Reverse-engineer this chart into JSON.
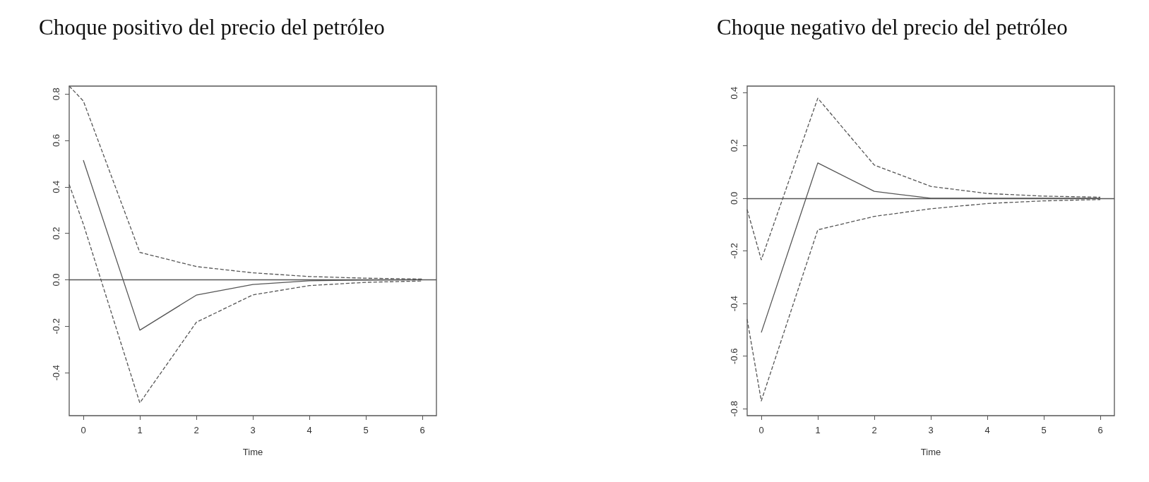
{
  "chart_data": [
    {
      "type": "line",
      "title": "Choque positivo del precio del petróleo",
      "xlabel": "Time",
      "xlim": [
        -0.25,
        6.25
      ],
      "xticks": [
        0,
        1,
        2,
        3,
        4,
        5,
        6
      ],
      "ylim": [
        -0.585,
        0.834
      ],
      "yticks": [
        {
          "value": -0.4,
          "label": "-0.4"
        },
        {
          "value": -0.2,
          "label": "-0.2"
        },
        {
          "value": 0,
          "label": "0.0"
        },
        {
          "value": 0.2,
          "label": "0.2"
        },
        {
          "value": 0.4,
          "label": "0.4"
        },
        {
          "value": 0.6,
          "label": "0.6"
        },
        {
          "value": 0.8,
          "label": "0.8"
        }
      ],
      "grid": false,
      "marker": "none",
      "ref_lines": [
        {
          "axis": "y",
          "value": 0,
          "color": "#555555",
          "line_style": "solid"
        }
      ],
      "series": [
        {
          "color": "#555555",
          "line_style": "solid",
          "x": [
            0,
            1,
            2,
            3,
            4,
            5,
            6
          ],
          "values": [
            0.515,
            -0.217,
            -0.066,
            -0.02,
            -0.004,
            -0.001,
            0
          ]
        },
        {
          "color": "#555555",
          "line_style": "dashed",
          "x": [
            -0.25,
            0,
            1,
            2,
            3,
            4,
            5,
            6
          ],
          "values": [
            0.834,
            0.77,
            0.118,
            0.057,
            0.03,
            0.014,
            0.007,
            0.003
          ]
        },
        {
          "color": "#555555",
          "line_style": "dashed",
          "x": [
            -0.25,
            0,
            1,
            2,
            3,
            4,
            5,
            6
          ],
          "values": [
            0.41,
            0.24,
            -0.53,
            -0.183,
            -0.065,
            -0.025,
            -0.011,
            -0.005
          ]
        }
      ]
    },
    {
      "type": "line",
      "title": "Choque negativo del precio del petróleo",
      "xlabel": "Time",
      "xlim": [
        -0.25,
        6.25
      ],
      "xticks": [
        0,
        1,
        2,
        3,
        4,
        5,
        6
      ],
      "ylim": [
        -0.826,
        0.426
      ],
      "yticks": [
        {
          "value": -0.8,
          "label": "-0.8"
        },
        {
          "value": -0.6,
          "label": "-0.6"
        },
        {
          "value": -0.4,
          "label": "-0.4"
        },
        {
          "value": -0.2,
          "label": "-0.2"
        },
        {
          "value": 0,
          "label": "0.0"
        },
        {
          "value": 0.2,
          "label": "0.2"
        },
        {
          "value": 0.4,
          "label": "0.4"
        }
      ],
      "grid": false,
      "marker": "none",
      "ref_lines": [
        {
          "axis": "y",
          "value": 0,
          "color": "#555555",
          "line_style": "solid"
        }
      ],
      "series": [
        {
          "color": "#555555",
          "line_style": "solid",
          "x": [
            0,
            1,
            2,
            3,
            4,
            5,
            6
          ],
          "values": [
            -0.51,
            0.134,
            0.026,
            0,
            0,
            0,
            0
          ]
        },
        {
          "color": "#555555",
          "line_style": "dashed",
          "x": [
            -0.25,
            0,
            1,
            2,
            3,
            4,
            5,
            6
          ],
          "values": [
            -0.043,
            -0.234,
            0.38,
            0.126,
            0.045,
            0.018,
            0.008,
            0.004
          ]
        },
        {
          "color": "#555555",
          "line_style": "dashed",
          "x": [
            -0.25,
            0,
            1,
            2,
            3,
            4,
            5,
            6
          ],
          "values": [
            -0.46,
            -0.77,
            -0.12,
            -0.069,
            -0.04,
            -0.02,
            -0.01,
            -0.005
          ]
        }
      ]
    }
  ]
}
